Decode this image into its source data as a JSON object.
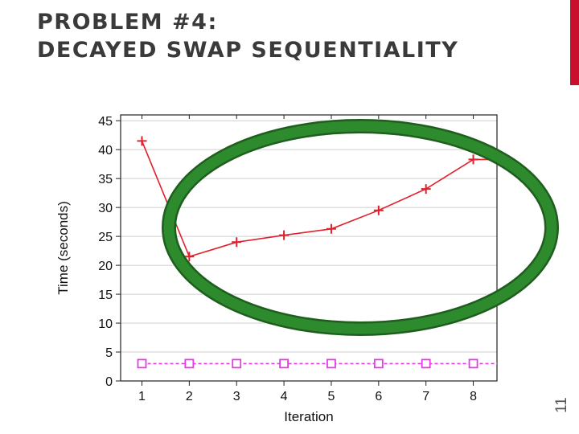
{
  "slide": {
    "title_line1": "PROBLEM #4:",
    "title_line2": "DECAYED SWAP SEQUENTIALITY",
    "slide_number": "11",
    "accent_color": "#c8102e"
  },
  "chart_data": {
    "type": "line",
    "xlabel": "Iteration",
    "ylabel": "Time (seconds)",
    "x": [
      1,
      2,
      3,
      4,
      5,
      6,
      7,
      8
    ],
    "xticks": [
      "1",
      "2",
      "3",
      "4",
      "5",
      "6",
      "7",
      "8"
    ],
    "yticks": [
      "0",
      "5",
      "10",
      "15",
      "20",
      "25",
      "30",
      "35",
      "40",
      "45"
    ],
    "xlim": [
      0.55,
      8.5
    ],
    "ylim": [
      0,
      46
    ],
    "grid": "horizontal",
    "series": [
      {
        "color": "#e0202c",
        "marker": "plus",
        "line_style": "solid",
        "values": [
          41.5,
          21.5,
          24,
          25.2,
          26.3,
          29.5,
          33.2,
          38.3
        ],
        "extends_to_edge": true
      },
      {
        "color": "#e040e0",
        "marker": "square",
        "line_style": "dashed",
        "values": [
          3,
          3,
          3,
          3,
          3,
          3,
          3,
          3
        ],
        "extends_to_edge": true
      }
    ],
    "annotation": {
      "shape": "ellipse",
      "color": "#2d8a2d",
      "outline": "#1f5e1f",
      "encloses": "red series, iterations 2-8"
    }
  }
}
